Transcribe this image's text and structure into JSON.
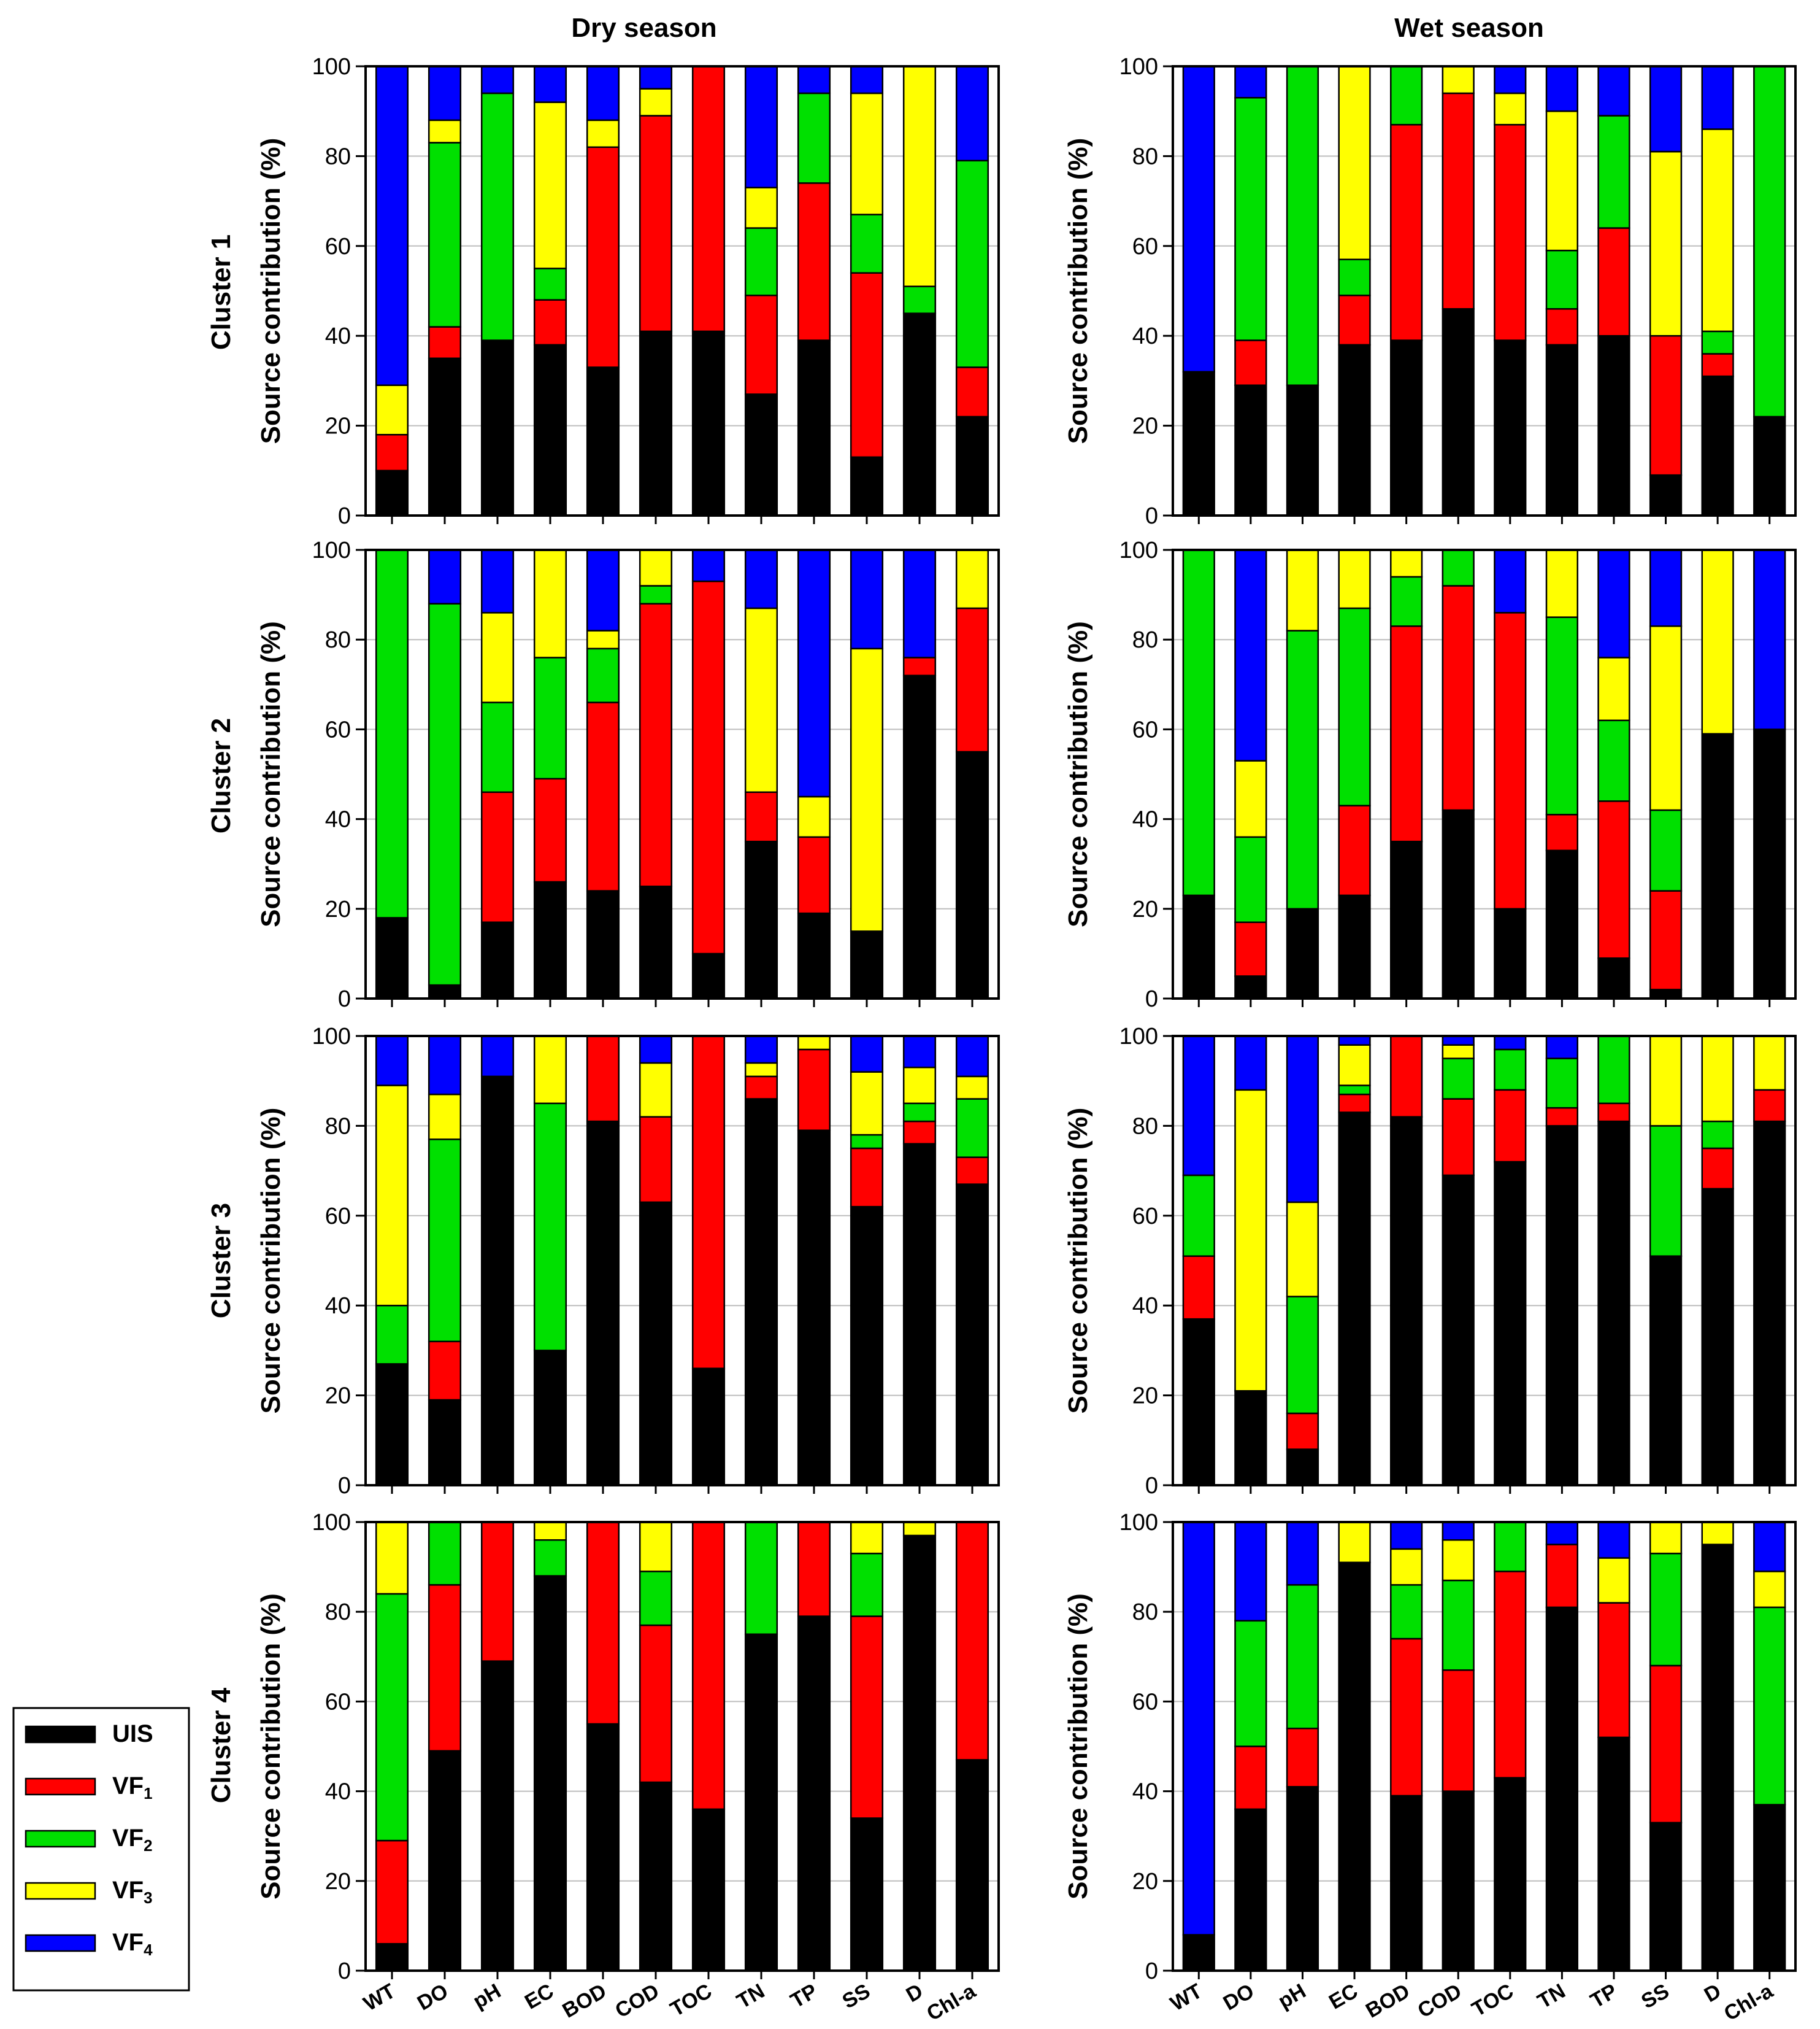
{
  "figure": {
    "season_titles": [
      "Dry season",
      "Wet season"
    ],
    "cluster_labels": [
      "Cluster 1",
      "Cluster 2",
      "Cluster 3",
      "Cluster 4"
    ]
  },
  "legend": {
    "items": [
      {
        "label": "UIS",
        "sub": "",
        "color": "#000000"
      },
      {
        "label": "VF",
        "sub": "1",
        "color": "#ff0000"
      },
      {
        "label": "VF",
        "sub": "2",
        "color": "#00e000"
      },
      {
        "label": "VF",
        "sub": "3",
        "color": "#ffff00"
      },
      {
        "label": "VF",
        "sub": "4",
        "color": "#0000ff"
      }
    ]
  },
  "chart_data": {
    "type": "bar",
    "stacked": true,
    "categories": [
      "WT",
      "DO",
      "pH",
      "EC",
      "BOD",
      "COD",
      "TOC",
      "TN",
      "TP",
      "SS",
      "D",
      "Chl-a"
    ],
    "ylabel": "Source contribution (%)",
    "ylim": [
      0,
      100
    ],
    "yticks": [
      0,
      20,
      40,
      60,
      80,
      100
    ],
    "grid": "horizontal",
    "series_names": [
      "UIS",
      "VF1",
      "VF2",
      "VF3",
      "VF4"
    ],
    "series_colors": [
      "#000000",
      "#ff0000",
      "#00e000",
      "#ffff00",
      "#0000ff"
    ],
    "panels": [
      {
        "cluster": "Cluster 1",
        "season": "Dry season",
        "values": {
          "UIS": [
            10,
            35,
            39,
            38,
            33,
            41,
            41,
            27,
            39,
            13,
            45,
            22
          ],
          "VF1": [
            8,
            7,
            0,
            10,
            49,
            48,
            59,
            22,
            35,
            41,
            0,
            11
          ],
          "VF2": [
            0,
            41,
            55,
            7,
            0,
            0,
            0,
            15,
            20,
            13,
            6,
            46
          ],
          "VF3": [
            11,
            5,
            0,
            37,
            6,
            6,
            0,
            9,
            0,
            27,
            49,
            0
          ],
          "VF4": [
            71,
            12,
            6,
            8,
            12,
            5,
            0,
            27,
            6,
            6,
            0,
            21
          ]
        }
      },
      {
        "cluster": "Cluster 1",
        "season": "Wet season",
        "values": {
          "UIS": [
            32,
            29,
            29,
            38,
            39,
            46,
            39,
            38,
            40,
            9,
            31,
            22
          ],
          "VF1": [
            0,
            10,
            0,
            11,
            48,
            48,
            48,
            8,
            24,
            31,
            5,
            0
          ],
          "VF2": [
            0,
            54,
            71,
            8,
            13,
            0,
            0,
            13,
            25,
            0,
            5,
            78
          ],
          "VF3": [
            0,
            0,
            0,
            43,
            0,
            6,
            7,
            31,
            0,
            41,
            45,
            0
          ],
          "VF4": [
            68,
            7,
            0,
            0,
            0,
            0,
            6,
            10,
            11,
            19,
            14,
            0
          ]
        }
      },
      {
        "cluster": "Cluster 2",
        "season": "Dry season",
        "values": {
          "UIS": [
            18,
            3,
            17,
            26,
            24,
            25,
            10,
            35,
            19,
            15,
            72,
            55
          ],
          "VF1": [
            0,
            0,
            29,
            23,
            42,
            63,
            83,
            11,
            17,
            0,
            4,
            32
          ],
          "VF2": [
            82,
            85,
            20,
            27,
            12,
            4,
            0,
            0,
            0,
            0,
            0,
            0
          ],
          "VF3": [
            0,
            0,
            20,
            24,
            4,
            8,
            0,
            41,
            9,
            63,
            0,
            13
          ],
          "VF4": [
            0,
            12,
            14,
            0,
            18,
            0,
            7,
            13,
            55,
            22,
            24,
            0
          ]
        }
      },
      {
        "cluster": "Cluster 2",
        "season": "Wet season",
        "values": {
          "UIS": [
            23,
            5,
            20,
            23,
            35,
            42,
            20,
            33,
            9,
            2,
            59,
            60
          ],
          "VF1": [
            0,
            12,
            0,
            20,
            48,
            50,
            66,
            8,
            35,
            22,
            0,
            0
          ],
          "VF2": [
            77,
            19,
            62,
            44,
            11,
            8,
            0,
            44,
            18,
            18,
            0,
            0
          ],
          "VF3": [
            0,
            17,
            18,
            13,
            6,
            0,
            0,
            15,
            14,
            41,
            41,
            0
          ],
          "VF4": [
            0,
            47,
            0,
            0,
            0,
            0,
            14,
            0,
            24,
            17,
            0,
            40
          ]
        }
      },
      {
        "cluster": "Cluster 3",
        "season": "Dry season",
        "values": {
          "UIS": [
            27,
            19,
            91,
            30,
            81,
            63,
            26,
            86,
            79,
            62,
            76,
            67
          ],
          "VF1": [
            0,
            13,
            0,
            0,
            19,
            19,
            74,
            5,
            18,
            13,
            5,
            6
          ],
          "VF2": [
            13,
            45,
            0,
            55,
            0,
            0,
            0,
            0,
            0,
            3,
            4,
            13
          ],
          "VF3": [
            49,
            10,
            0,
            15,
            0,
            12,
            0,
            3,
            3,
            14,
            8,
            5
          ],
          "VF4": [
            11,
            13,
            9,
            0,
            0,
            6,
            0,
            6,
            0,
            8,
            7,
            9
          ]
        }
      },
      {
        "cluster": "Cluster 3",
        "season": "Wet season",
        "values": {
          "UIS": [
            37,
            21,
            8,
            83,
            82,
            69,
            72,
            80,
            81,
            51,
            66,
            81
          ],
          "VF1": [
            14,
            0,
            8,
            4,
            18,
            17,
            16,
            4,
            4,
            0,
            9,
            7
          ],
          "VF2": [
            18,
            0,
            26,
            2,
            0,
            9,
            9,
            11,
            15,
            29,
            6,
            0
          ],
          "VF3": [
            0,
            67,
            21,
            9,
            0,
            3,
            0,
            0,
            0,
            20,
            19,
            12
          ],
          "VF4": [
            31,
            12,
            37,
            2,
            0,
            2,
            3,
            5,
            0,
            0,
            0,
            0
          ]
        }
      },
      {
        "cluster": "Cluster 4",
        "season": "Dry season",
        "values": {
          "UIS": [
            6,
            49,
            69,
            88,
            55,
            42,
            36,
            75,
            79,
            34,
            97,
            47
          ],
          "VF1": [
            23,
            37,
            31,
            0,
            45,
            35,
            64,
            0,
            21,
            45,
            0,
            53
          ],
          "VF2": [
            55,
            14,
            0,
            8,
            0,
            12,
            0,
            25,
            0,
            14,
            0,
            0
          ],
          "VF3": [
            16,
            0,
            0,
            4,
            0,
            11,
            0,
            0,
            0,
            7,
            3,
            0
          ],
          "VF4": [
            0,
            0,
            0,
            0,
            0,
            0,
            0,
            0,
            0,
            0,
            0,
            0
          ]
        }
      },
      {
        "cluster": "Cluster 4",
        "season": "Wet season",
        "values": {
          "UIS": [
            8,
            36,
            41,
            91,
            39,
            40,
            43,
            81,
            52,
            33,
            95,
            37
          ],
          "VF1": [
            0,
            14,
            13,
            0,
            35,
            27,
            46,
            14,
            30,
            35,
            0,
            0
          ],
          "VF2": [
            0,
            28,
            32,
            0,
            12,
            20,
            11,
            0,
            0,
            25,
            0,
            44
          ],
          "VF3": [
            0,
            0,
            0,
            9,
            8,
            9,
            0,
            0,
            10,
            7,
            5,
            8
          ],
          "VF4": [
            92,
            22,
            14,
            0,
            6,
            4,
            0,
            5,
            8,
            0,
            0,
            11
          ]
        }
      }
    ]
  }
}
